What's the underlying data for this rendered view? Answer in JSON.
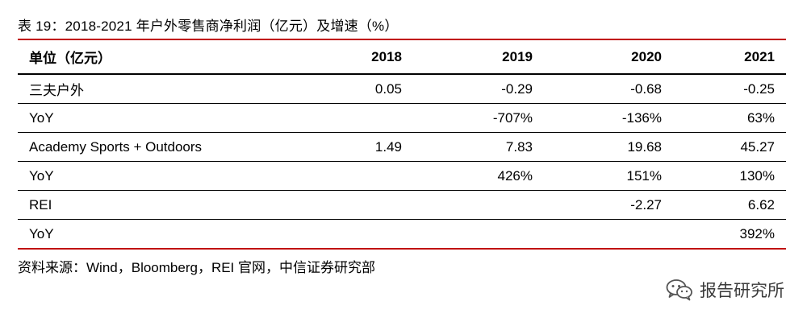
{
  "caption": "表 19：2018-2021 年户外零售商净利润（亿元）及增速（%）",
  "table": {
    "headers": [
      "单位（亿元）",
      "2018",
      "2019",
      "2020",
      "2021"
    ],
    "rows": [
      [
        "三夫户外",
        "0.05",
        "-0.29",
        "-0.68",
        "-0.25"
      ],
      [
        "YoY",
        "",
        "-707%",
        "-136%",
        "63%"
      ],
      [
        "Academy Sports + Outdoors",
        "1.49",
        "7.83",
        "19.68",
        "45.27"
      ],
      [
        "YoY",
        "",
        "426%",
        "151%",
        "130%"
      ],
      [
        "REI",
        "",
        "",
        "-2.27",
        "6.62"
      ],
      [
        "YoY",
        "",
        "",
        "",
        "392%"
      ]
    ]
  },
  "source": "资料来源：Wind，Bloomberg，REI 官网，中信证券研究部",
  "watermark": {
    "icon": "wechat-icon",
    "text": "报告研究所"
  },
  "colors": {
    "accent_rule": "#c00000",
    "text": "#000000"
  }
}
